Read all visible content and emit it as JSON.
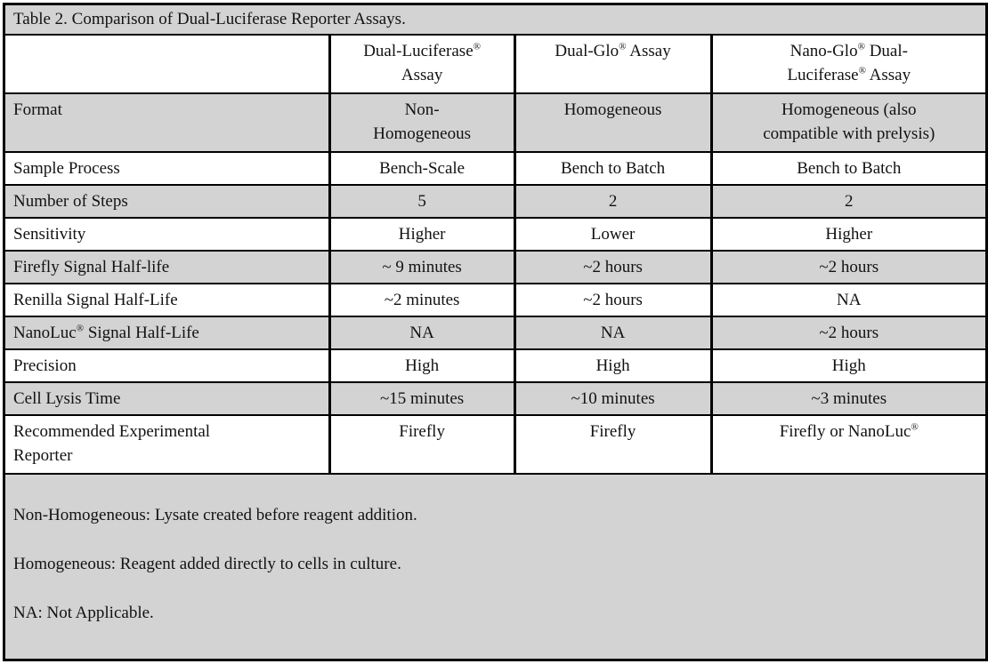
{
  "table": {
    "title": "Table 2. Comparison of Dual-Luciferase Reporter Assays.",
    "columns": [
      "",
      "Dual-Luciferase®\nAssay",
      "Dual-Glo® Assay",
      "Nano-Glo® Dual-\nLuciferase® Assay"
    ],
    "rows": [
      {
        "label": "Format",
        "values": [
          "Non-\nHomogeneous",
          "Homogeneous",
          "Homogeneous (also\ncompatible with prelysis)"
        ],
        "tall": true
      },
      {
        "label": "Sample Process",
        "values": [
          "Bench-Scale",
          "Bench to Batch",
          "Bench to Batch"
        ],
        "tall": false
      },
      {
        "label": "Number of Steps",
        "values": [
          "5",
          "2",
          "2"
        ],
        "tall": false
      },
      {
        "label": "Sensitivity",
        "values": [
          "Higher",
          "Lower",
          "Higher"
        ],
        "tall": false
      },
      {
        "label": "Firefly Signal Half-life",
        "values": [
          "~ 9 minutes",
          "~2 hours",
          "~2 hours"
        ],
        "tall": false
      },
      {
        "label": "Renilla Signal Half-Life",
        "values": [
          "~2 minutes",
          "~2 hours",
          "NA"
        ],
        "tall": false
      },
      {
        "label": "NanoLuc® Signal Half-Life",
        "values": [
          "NA",
          "NA",
          "~2 hours"
        ],
        "tall": false
      },
      {
        "label": "Precision",
        "values": [
          "High",
          "High",
          "High"
        ],
        "tall": false
      },
      {
        "label": "Cell Lysis Time",
        "values": [
          "~15 minutes",
          "~10 minutes",
          "~3 minutes"
        ],
        "tall": false
      },
      {
        "label": "Recommended Experimental\nReporter",
        "values": [
          "Firefly",
          "Firefly",
          "Firefly or NanoLuc®"
        ],
        "tall": true
      }
    ],
    "footnotes": [
      "Non-Homogeneous: Lysate created before reagent addition.",
      "Homogeneous: Reagent added directly to cells in culture.",
      "NA: Not Applicable."
    ]
  },
  "colors": {
    "row_shade": "#d3d3d3",
    "border": "#000000",
    "background": "#ffffff"
  }
}
